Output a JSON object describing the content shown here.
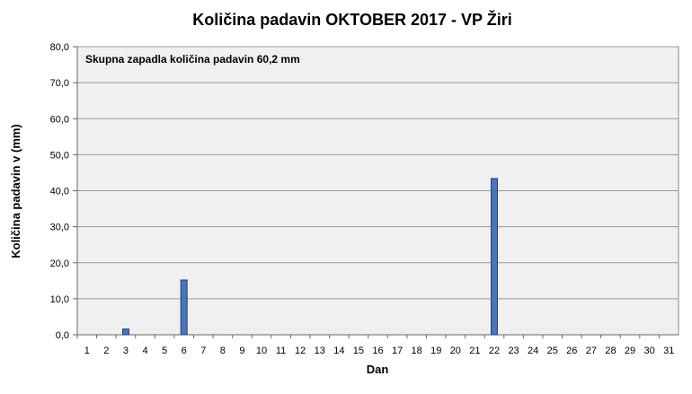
{
  "chart_data": {
    "type": "bar",
    "title": "Količina padavin OKTOBER 2017 - VP Žiri",
    "xlabel": "Dan",
    "ylabel": "Količina padavin v  (mm)",
    "annotation": "Skupna zapadla količina padavin 60,2 mm",
    "ylim": [
      0,
      80
    ],
    "yticks": [
      "0,0",
      "10,0",
      "20,0",
      "30,0",
      "40,0",
      "50,0",
      "60,0",
      "70,0",
      "80,0"
    ],
    "categories": [
      "1",
      "2",
      "3",
      "4",
      "5",
      "6",
      "7",
      "8",
      "9",
      "10",
      "11",
      "12",
      "13",
      "14",
      "15",
      "16",
      "17",
      "18",
      "19",
      "20",
      "21",
      "22",
      "23",
      "24",
      "25",
      "26",
      "27",
      "28",
      "29",
      "30",
      "31"
    ],
    "series": [
      {
        "values": [
          0,
          0,
          1.6,
          0,
          0,
          15.2,
          0,
          0,
          0,
          0,
          0,
          0,
          0,
          0,
          0,
          0,
          0,
          0,
          0,
          0,
          0,
          43.4,
          0,
          0,
          0,
          0,
          0,
          0,
          0,
          0,
          0
        ]
      }
    ],
    "grid": true,
    "colors": {
      "bar": "#4a76b8",
      "bar_edge": "#1f3f73",
      "plot_bg": "#f0f0f0",
      "grid": "#9a9a9a"
    }
  }
}
